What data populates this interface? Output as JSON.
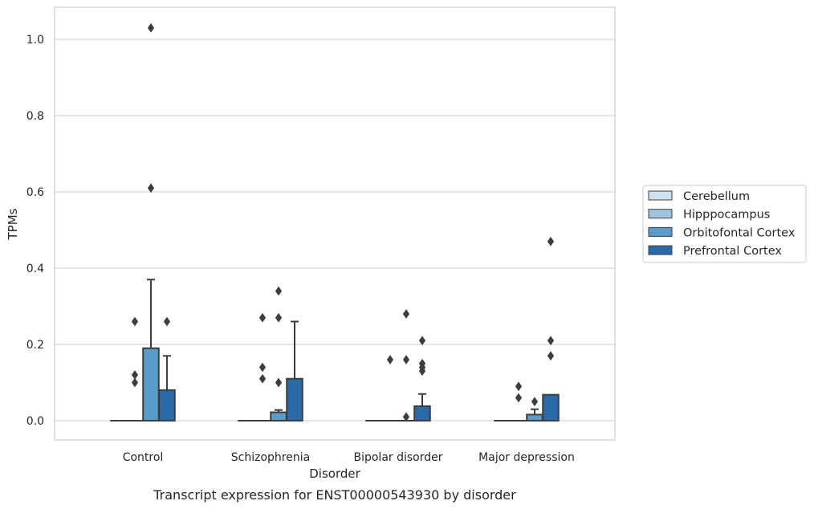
{
  "chart_data": {
    "type": "box",
    "xlabel": "Disorder",
    "ylabel": "TPMs",
    "caption": "Transcript expression for ENST00000543930 by disorder",
    "ylim": [
      -0.05,
      1.08
    ],
    "yticks": [
      "0.0",
      "0.2",
      "0.4",
      "0.6",
      "0.8",
      "1.0"
    ],
    "grid": "horizontal",
    "legend_position": "right",
    "categories": [
      "Control",
      "Schizophrenia",
      "Bipolar disorder",
      "Major depression"
    ],
    "series": [
      {
        "name": "Cerebellum",
        "color": "#d0e0ef",
        "boxes": [
          {
            "q1": 0,
            "median": 0,
            "q3": 0,
            "whisker_low": 0,
            "whisker_high": 0,
            "outliers": []
          },
          {
            "q1": 0,
            "median": 0,
            "q3": 0,
            "whisker_low": 0,
            "whisker_high": 0,
            "outliers": []
          },
          {
            "q1": 0,
            "median": 0,
            "q3": 0,
            "whisker_low": 0,
            "whisker_high": 0,
            "outliers": []
          },
          {
            "q1": 0,
            "median": 0,
            "q3": 0,
            "whisker_low": 0,
            "whisker_high": 0,
            "outliers": []
          }
        ]
      },
      {
        "name": "Hipppocampus",
        "color": "#9ac4df",
        "boxes": [
          {
            "q1": 0,
            "median": 0,
            "q3": 0,
            "whisker_low": 0,
            "whisker_high": 0,
            "outliers": [
              0.1,
              0.12,
              0.26
            ]
          },
          {
            "q1": 0,
            "median": 0,
            "q3": 0,
            "whisker_low": 0,
            "whisker_high": 0,
            "outliers": [
              0.11
            ]
          },
          {
            "q1": 0,
            "median": 0,
            "q3": 0,
            "whisker_low": 0,
            "whisker_high": 0,
            "outliers": [
              0.16
            ]
          },
          {
            "q1": 0,
            "median": 0,
            "q3": 0,
            "whisker_low": 0,
            "whisker_high": 0,
            "outliers": [
              0.06,
              0.09
            ]
          }
        ]
      },
      {
        "name": "Orbitofontal Cortex",
        "color": "#5b9cc9",
        "boxes": [
          {
            "q1": 0,
            "median": 0,
            "q3": 0.19,
            "whisker_low": 0,
            "whisker_high": 0.37,
            "outliers": [
              0.61,
              1.03
            ]
          },
          {
            "q1": 0,
            "median": 0,
            "q3": 0.022,
            "whisker_low": 0,
            "whisker_high": 0.028,
            "outliers": [
              0.1,
              0.27,
              0.34
            ]
          },
          {
            "q1": 0,
            "median": 0,
            "q3": 0,
            "whisker_low": 0,
            "whisker_high": 0,
            "outliers": [
              0.01,
              0.16,
              0.28
            ]
          },
          {
            "q1": 0,
            "median": 0,
            "q3": 0.016,
            "whisker_low": 0,
            "whisker_high": 0.03,
            "outliers": [
              0.05
            ]
          }
        ]
      },
      {
        "name": "Prefrontal Cortex",
        "color": "#2b6aa8",
        "boxes": [
          {
            "q1": 0,
            "median": 0,
            "q3": 0.08,
            "whisker_low": 0,
            "whisker_high": 0.17,
            "outliers": [
              0.26
            ]
          },
          {
            "q1": 0,
            "median": 0,
            "q3": 0.11,
            "whisker_low": 0,
            "whisker_high": 0.26,
            "outliers": []
          },
          {
            "q1": 0,
            "median": 0,
            "q3": 0.038,
            "whisker_low": 0,
            "whisker_high": 0.07,
            "outliers": [
              0.13,
              0.14,
              0.15,
              0.21
            ]
          },
          {
            "q1": 0,
            "median": 0,
            "q3": 0.068,
            "whisker_low": 0,
            "whisker_high": 0.068,
            "outliers": [
              0.17,
              0.21,
              0.47
            ]
          }
        ]
      }
    ],
    "extra_outliers": [
      {
        "category": 1,
        "series": 1,
        "value": 0.14
      },
      {
        "category": 1,
        "series": 1,
        "value": 0.27
      },
      {
        "category": 2,
        "series": 3,
        "value": 0.14
      }
    ]
  },
  "colors": {
    "grid": "#cccccc",
    "frame": "#cccccc",
    "edge": "#3d3d3d"
  }
}
